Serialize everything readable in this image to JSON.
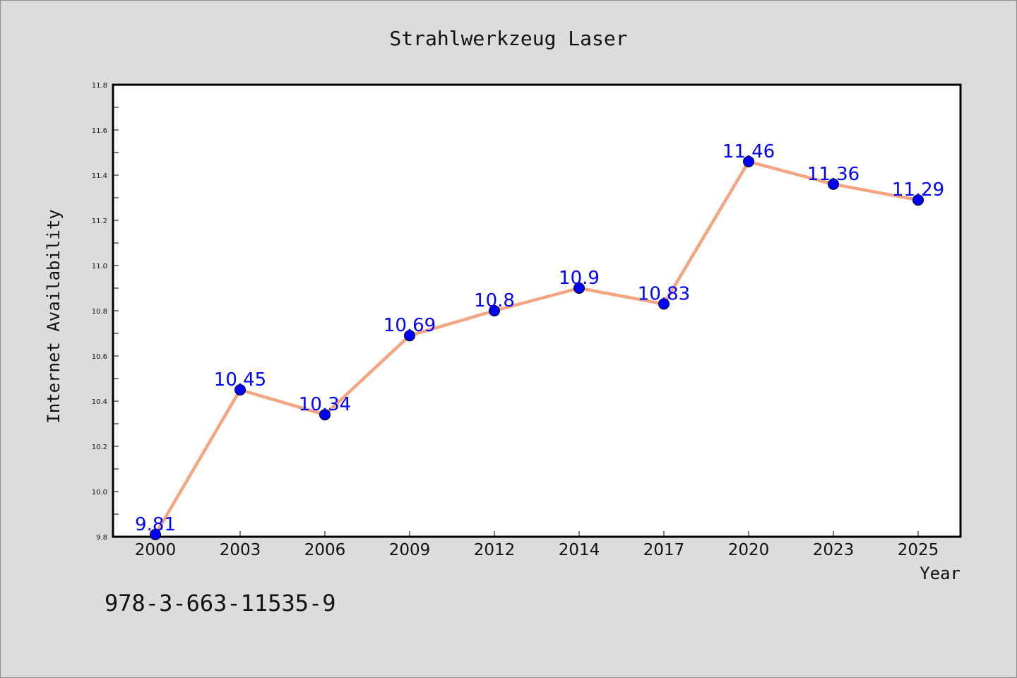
{
  "chart_data": {
    "type": "line",
    "title": "Strahlwerkzeug Laser",
    "xlabel": "Year",
    "ylabel": "Internet Availability",
    "categories": [
      "2000",
      "2003",
      "2006",
      "2009",
      "2012",
      "2014",
      "2017",
      "2020",
      "2023",
      "2025"
    ],
    "series": [
      {
        "values": [
          9.81,
          10.45,
          10.34,
          10.69,
          10.8,
          10.9,
          10.83,
          11.46,
          11.36,
          11.29
        ]
      }
    ],
    "data_labels": [
      "9.81",
      "10.45",
      "10.34",
      "10.69",
      "10.8",
      "10.9",
      "10.83",
      "11.46",
      "11.36",
      "11.29"
    ],
    "ylim": [
      9.8,
      11.8
    ],
    "yticks": [
      "9.8",
      "10.0",
      "10.2",
      "10.4",
      "10.6",
      "10.8",
      "11.0",
      "11.2",
      "11.4",
      "11.6",
      "11.8"
    ],
    "grid": false,
    "legend": "none",
    "colors": {
      "line": "#f4a582",
      "marker": "#0000ff",
      "label": "#0000ff",
      "plot_bg": "#ffffff",
      "page_bg": "#dcdcdc"
    }
  },
  "footnote": "978-3-663-11535-9"
}
